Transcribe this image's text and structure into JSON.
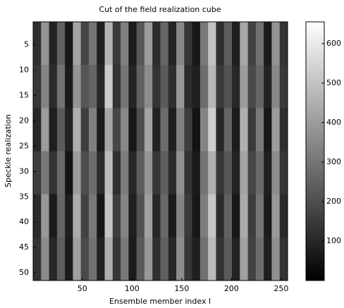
{
  "chart_data": {
    "type": "heatmap",
    "title": "Cut of the field realization cube",
    "xlabel": "Ensemble member index l",
    "ylabel": "Speckle realization",
    "xlim": [
      0.5,
      256.5
    ],
    "xticks": [
      50,
      100,
      150,
      200,
      250
    ],
    "ylim": [
      0.5,
      51.5
    ],
    "yticks": [
      5,
      10,
      15,
      20,
      25,
      30,
      35,
      40,
      45,
      50
    ],
    "y_reversed": true,
    "colormap": "gray",
    "clim": [
      0,
      655
    ],
    "cticks": [
      100,
      200,
      300,
      400,
      500,
      600
    ],
    "z": [
      [
        120,
        380,
        90,
        250,
        60,
        420,
        180,
        300,
        80,
        460,
        150,
        330,
        70,
        220,
        400,
        110,
        260,
        90,
        350,
        140,
        60,
        310,
        500,
        120,
        240,
        80,
        430,
        170,
        290,
        70,
        380,
        130
      ],
      [
        140,
        340,
        110,
        290,
        70,
        380,
        220,
        260,
        100,
        520,
        130,
        300,
        90,
        250,
        360,
        130,
        230,
        120,
        390,
        110,
        80,
        280,
        470,
        150,
        210,
        100,
        400,
        190,
        260,
        90,
        350,
        150
      ],
      [
        100,
        400,
        80,
        230,
        90,
        450,
        160,
        330,
        70,
        430,
        180,
        350,
        60,
        200,
        420,
        90,
        280,
        80,
        330,
        160,
        50,
        340,
        530,
        100,
        260,
        70,
        450,
        150,
        310,
        60,
        400,
        120
      ],
      [
        160,
        310,
        130,
        270,
        50,
        400,
        200,
        280,
        110,
        480,
        120,
        320,
        100,
        240,
        380,
        140,
        240,
        110,
        370,
        130,
        70,
        300,
        450,
        140,
        220,
        90,
        420,
        180,
        270,
        80,
        360,
        140
      ],
      [
        110,
        390,
        70,
        260,
        80,
        440,
        170,
        310,
        60,
        500,
        160,
        340,
        80,
        210,
        410,
        100,
        270,
        70,
        340,
        150,
        60,
        320,
        510,
        110,
        250,
        60,
        440,
        160,
        300,
        70,
        390,
        110
      ],
      [
        130,
        360,
        100,
        240,
        70,
        410,
        190,
        290,
        90,
        450,
        140,
        310,
        70,
        230,
        390,
        120,
        250,
        100,
        360,
        140,
        80,
        290,
        480,
        130,
        230,
        90,
        410,
        170,
        280,
        80,
        370,
        130
      ]
    ]
  }
}
